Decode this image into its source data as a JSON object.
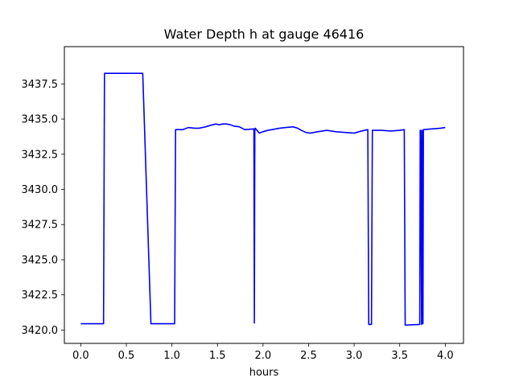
{
  "chart_data": {
    "type": "line",
    "title": "Water Depth h at gauge 46416",
    "xlabel": "hours",
    "ylabel": "",
    "xlim": [
      -0.18,
      4.2
    ],
    "ylim": [
      3419.05,
      3440.15
    ],
    "xticks": [
      {
        "value": 0.0,
        "label": "0.0"
      },
      {
        "value": 0.5,
        "label": "0.5"
      },
      {
        "value": 1.0,
        "label": "1.0"
      },
      {
        "value": 1.5,
        "label": "1.5"
      },
      {
        "value": 2.0,
        "label": "2.0"
      },
      {
        "value": 2.5,
        "label": "2.5"
      },
      {
        "value": 3.0,
        "label": "3.0"
      },
      {
        "value": 3.5,
        "label": "3.5"
      },
      {
        "value": 4.0,
        "label": "4.0"
      }
    ],
    "yticks": [
      {
        "value": 3420.0,
        "label": "3420.0"
      },
      {
        "value": 3422.5,
        "label": "3422.5"
      },
      {
        "value": 3425.0,
        "label": "3425.0"
      },
      {
        "value": 3427.5,
        "label": "3427.5"
      },
      {
        "value": 3430.0,
        "label": "3430.0"
      },
      {
        "value": 3432.5,
        "label": "3432.5"
      },
      {
        "value": 3435.0,
        "label": "3435.0"
      },
      {
        "value": 3437.5,
        "label": "3437.5"
      }
    ],
    "grid": false,
    "series": [
      {
        "color": "#0000ff",
        "x": [
          0.0,
          0.25,
          0.26,
          0.68,
          0.77,
          1.03,
          1.04,
          1.12,
          1.18,
          1.25,
          1.3,
          1.37,
          1.42,
          1.48,
          1.52,
          1.56,
          1.6,
          1.64,
          1.68,
          1.74,
          1.8,
          1.9,
          1.905,
          1.91,
          1.915,
          1.92,
          1.96,
          2.0,
          2.05,
          2.1,
          2.18,
          2.25,
          2.33,
          2.38,
          2.42,
          2.47,
          2.52,
          2.6,
          2.7,
          2.8,
          2.9,
          3.0,
          3.08,
          3.15,
          3.16,
          3.19,
          3.2,
          3.3,
          3.4,
          3.5,
          3.55,
          3.56,
          3.72,
          3.725,
          3.73,
          3.74,
          3.745,
          3.755,
          3.76,
          3.85,
          3.95,
          4.0
        ],
        "y": [
          3420.45,
          3420.45,
          3438.25,
          3438.25,
          3420.45,
          3420.45,
          3434.25,
          3434.25,
          3434.4,
          3434.35,
          3434.35,
          3434.45,
          3434.55,
          3434.65,
          3434.6,
          3434.65,
          3434.65,
          3434.6,
          3434.5,
          3434.45,
          3434.25,
          3434.3,
          3420.5,
          3434.3,
          3434.35,
          3434.3,
          3434.0,
          3434.1,
          3434.2,
          3434.25,
          3434.35,
          3434.4,
          3434.45,
          3434.35,
          3434.2,
          3434.05,
          3434.0,
          3434.1,
          3434.2,
          3434.1,
          3434.05,
          3434.0,
          3434.15,
          3434.25,
          3420.4,
          3420.4,
          3434.2,
          3434.2,
          3434.15,
          3434.2,
          3434.25,
          3420.35,
          3420.4,
          3434.2,
          3434.2,
          3420.4,
          3434.2,
          3420.45,
          3434.25,
          3434.3,
          3434.35,
          3434.4
        ]
      }
    ]
  }
}
